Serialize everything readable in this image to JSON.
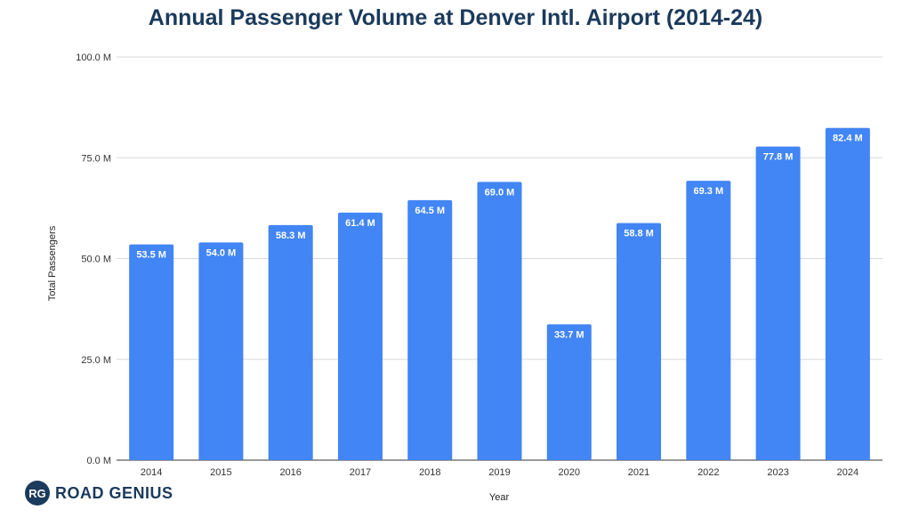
{
  "chart_data": {
    "type": "bar",
    "title": "Annual Passenger Volume at Denver Intl. Airport (2014-24)",
    "xlabel": "Year",
    "ylabel": "Total Passengers",
    "categories": [
      "2014",
      "2015",
      "2016",
      "2017",
      "2018",
      "2019",
      "2020",
      "2021",
      "2022",
      "2023",
      "2024"
    ],
    "values": [
      53.5,
      54.0,
      58.3,
      61.4,
      64.5,
      69.0,
      33.7,
      58.8,
      69.3,
      77.8,
      82.4
    ],
    "data_labels": [
      "53.5 M",
      "54.0 M",
      "58.3 M",
      "61.4 M",
      "64.5 M",
      "69.0 M",
      "33.7 M",
      "58.8 M",
      "69.3 M",
      "77.8 M",
      "82.4 M"
    ],
    "ylim": [
      0,
      100
    ],
    "yticks": [
      0,
      25,
      50,
      75,
      100
    ],
    "ytick_labels": [
      "0.0 M",
      "25.0 M",
      "50.0 M",
      "75.0 M",
      "100.0 M"
    ],
    "grid": true,
    "bar_color": "#4285f4",
    "title_color": "#1b3a5c"
  },
  "brand": {
    "badge": "RG",
    "name": "ROAD GENIUS"
  }
}
